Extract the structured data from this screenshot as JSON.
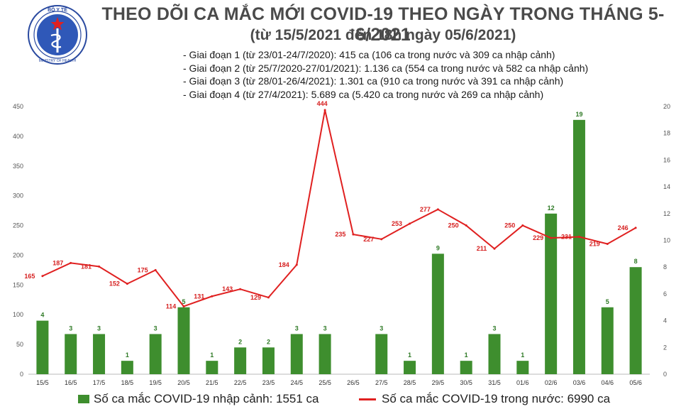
{
  "header": {
    "title": "THEO DÕI CA MẮC MỚI COVID-19 THEO NGÀY TRONG THÁNG 5-6/2021",
    "subtitle": "(từ 15/5/2021 đến 18h ngày 05/6/2021)",
    "logo_text": "BỘ Y TẾ",
    "logo_subtext": "MINISTRY OF HEALTH",
    "stages": [
      "- Giai đoạn 1 (từ 23/01-24/7/2020): 415 ca (106 ca trong nước và 309 ca nhập cảnh)",
      "- Giai đoạn 2 (từ 25/7/2020-27/01/2021): 1.136 ca (554 ca trong nước và 582 ca nhập cảnh)",
      "- Giai đoạn 3 (từ 28/01-26/4/2021): 1.301 ca (910 ca trong nước và 391 ca nhập cảnh)",
      "- Giai đoạn 4 (từ 27/4/2021): 5.689 ca (5.420 ca trong nước và 269 ca nhập cảnh)"
    ]
  },
  "colors": {
    "bar": "#3e8e2e",
    "line": "#e02020",
    "bar_label": "#2f7a26",
    "line_label": "#d62020"
  },
  "chart_data": {
    "type": "bar",
    "categories": [
      "15/5",
      "16/5",
      "17/5",
      "18/5",
      "19/5",
      "20/5",
      "21/5",
      "22/5",
      "23/5",
      "24/5",
      "25/5",
      "26/5",
      "27/5",
      "28/5",
      "29/5",
      "30/5",
      "31/5",
      "01/6",
      "02/6",
      "03/6",
      "04/6",
      "05/6"
    ],
    "series": [
      {
        "name": "Số ca mắc COVID-19 nhập cảnh: 1551 ca",
        "chart": "bar",
        "axis": "right",
        "values": [
          4,
          3,
          3,
          1,
          3,
          5,
          1,
          2,
          2,
          3,
          3,
          null,
          3,
          1,
          9,
          1,
          3,
          1,
          12,
          19,
          5,
          8
        ],
        "labels": [
          "4",
          "3",
          "3",
          "1",
          "3",
          "5",
          "1",
          "2",
          "2",
          "3",
          "3",
          "",
          "3",
          "1",
          "9",
          "1",
          "3",
          "1",
          "12",
          "19",
          "5",
          "8"
        ]
      },
      {
        "name": "Số ca mắc COVID-19 trong nước: 6990 ca",
        "chart": "line",
        "axis": "left",
        "values": [
          165,
          187,
          181,
          152,
          175,
          114,
          131,
          143,
          129,
          184,
          444,
          235,
          227,
          253,
          277,
          250,
          211,
          250,
          229,
          231,
          219,
          246
        ],
        "labels": [
          "165",
          "187",
          "181",
          "152",
          "175",
          "114",
          "131",
          "143",
          "129",
          "184",
          "444",
          "235",
          "227",
          "253",
          "277",
          "250",
          "211",
          "250",
          "229",
          "231",
          "219",
          "246"
        ]
      }
    ],
    "y_left": {
      "ylim": [
        0,
        450
      ],
      "ticks": [
        "0",
        "50",
        "100",
        "150",
        "200",
        "250",
        "300",
        "350",
        "400",
        "450"
      ]
    },
    "y_right": {
      "ylim": [
        0,
        20
      ],
      "ticks": [
        "0",
        "2",
        "4",
        "6",
        "8",
        "10",
        "12",
        "14",
        "16",
        "18",
        "20"
      ]
    },
    "legend_position": "bottom"
  }
}
